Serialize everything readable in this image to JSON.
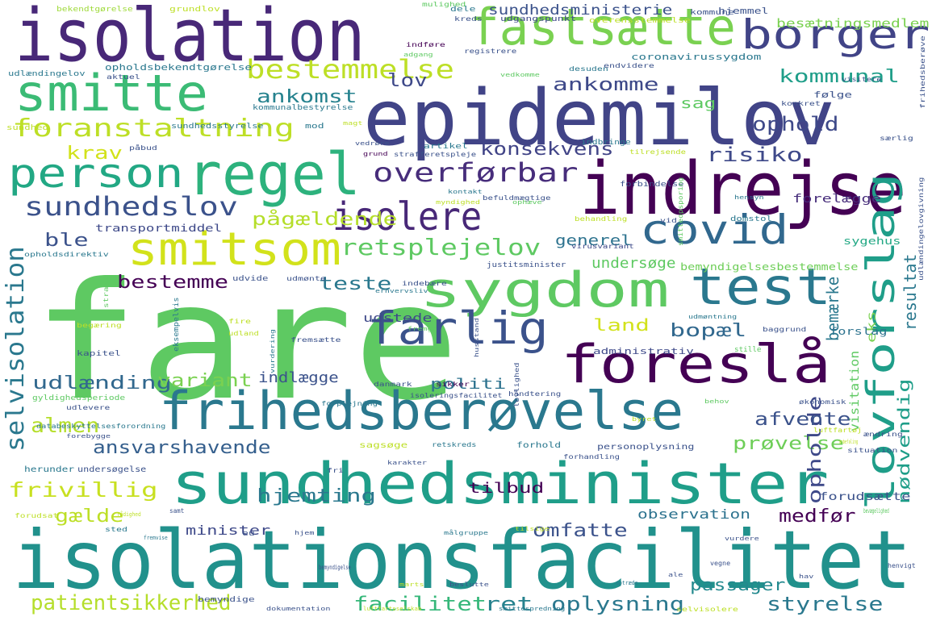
{
  "words": [
    {
      "text": "fare",
      "color": "#5ec962"
    },
    {
      "text": "isolationsfacilitet",
      "color": "#21918c"
    },
    {
      "text": "epidemilov",
      "color": "#414487"
    },
    {
      "text": "indrejse",
      "color": "#440154"
    },
    {
      "text": "isolation",
      "color": "#482878"
    },
    {
      "text": "sundhedsminister",
      "color": "#1f9e89"
    },
    {
      "text": "frihedsberøvelse",
      "color": "#2a788e"
    },
    {
      "text": "sygdom",
      "color": "#5ec962"
    },
    {
      "text": "regel",
      "color": "#2db27d"
    },
    {
      "text": "foreslå",
      "color": "#440154"
    },
    {
      "text": "smitte",
      "color": "#3bbb75"
    },
    {
      "text": "fastsætte",
      "color": "#7ad151"
    },
    {
      "text": "borger",
      "color": "#414487"
    },
    {
      "text": "test",
      "color": "#2a788e"
    },
    {
      "text": "covid",
      "color": "#31688e"
    },
    {
      "text": "lovforslag",
      "color": "#1f9e89"
    },
    {
      "text": "smitsom",
      "color": "#d2e21b"
    },
    {
      "text": "farlig",
      "color": "#3b528b"
    },
    {
      "text": "isolere",
      "color": "#482878"
    },
    {
      "text": "person",
      "color": "#22a884"
    },
    {
      "text": "bestemmelse",
      "color": "#bddf26"
    },
    {
      "text": "foranstaltning",
      "color": "#bddf26"
    },
    {
      "text": "sundhedslov",
      "color": "#3b528b"
    },
    {
      "text": "overførbar",
      "color": "#472d7b"
    },
    {
      "text": "retsplejelov",
      "color": "#5ec962"
    },
    {
      "text": "selvisolation",
      "color": "#2a788e"
    },
    {
      "text": "patientsikkerhed",
      "color": "#b5de2b"
    },
    {
      "text": "oplysning",
      "color": "#2a788e"
    },
    {
      "text": "facilitet",
      "color": "#35b779"
    },
    {
      "text": "ret",
      "color": "#26828e"
    },
    {
      "text": "styrelse",
      "color": "#2a788e"
    },
    {
      "text": "passager",
      "color": "#23898e"
    },
    {
      "text": "frivillig",
      "color": "#c8e020"
    },
    {
      "text": "almen",
      "color": "#b5de2b"
    },
    {
      "text": "udlænding",
      "color": "#31688e"
    },
    {
      "text": "variant",
      "color": "#7ad151"
    },
    {
      "text": "ansvarshavende",
      "color": "#355f8d"
    },
    {
      "text": "prøvelse",
      "color": "#6ece58"
    },
    {
      "text": "hjemting",
      "color": "#2a788e"
    },
    {
      "text": "omfatte",
      "color": "#3b528b"
    },
    {
      "text": "gælde",
      "color": "#bddf26"
    },
    {
      "text": "medfør",
      "color": "#440154"
    },
    {
      "text": "opholde",
      "color": "#3e4989"
    },
    {
      "text": "ophold",
      "color": "#3e4989"
    },
    {
      "text": "risiko",
      "color": "#3e4989"
    },
    {
      "text": "konsekvens",
      "color": "#414487"
    },
    {
      "text": "krav",
      "color": "#d2e21b"
    },
    {
      "text": "ankomst",
      "color": "#26828e"
    },
    {
      "text": "ankomme",
      "color": "#3e4989"
    },
    {
      "text": "kommunal",
      "color": "#1f9e89"
    },
    {
      "text": "lov",
      "color": "#3e4989"
    },
    {
      "text": "sag",
      "color": "#5ec962"
    },
    {
      "text": "ble",
      "color": "#3b528b"
    },
    {
      "text": "pågældende",
      "color": "#b5de2b"
    },
    {
      "text": "bestemme",
      "color": "#440154"
    },
    {
      "text": "teste",
      "color": "#2a788e"
    },
    {
      "text": "bopæl",
      "color": "#31688e"
    },
    {
      "text": "land",
      "color": "#d2e21b"
    },
    {
      "text": "bemærke",
      "color": "#2a788e"
    },
    {
      "text": "resultat",
      "color": "#2a788e"
    },
    {
      "text": "nødvendig",
      "color": "#1f9e89"
    },
    {
      "text": "afvente",
      "color": "#3b528b"
    },
    {
      "text": "indlægge",
      "color": "#3b528b"
    },
    {
      "text": "politi",
      "color": "#2c728e"
    },
    {
      "text": "generel",
      "color": "#2c728e"
    },
    {
      "text": "undersøge",
      "color": "#5ec962"
    },
    {
      "text": "tilbud",
      "color": "#440154"
    },
    {
      "text": "minister",
      "color": "#3e4989"
    },
    {
      "text": "observation",
      "color": "#2c728e"
    },
    {
      "text": "sundhedsministerie",
      "color": "#3b528b"
    },
    {
      "text": "besætningsmedlem",
      "color": "#7ad151"
    },
    {
      "text": "visitation",
      "color": "#5ec962"
    },
    {
      "text": "eks",
      "color": "#7ad151"
    },
    {
      "text": "forudsætte",
      "color": "#3b528b"
    },
    {
      "text": "udstede",
      "color": "#3e4989"
    },
    {
      "text": "transportmiddel",
      "color": "#3e4989"
    },
    {
      "text": "bemyndigelsesbestemmelse",
      "color": "#6ece58"
    },
    {
      "text": "sygehus",
      "color": "#22a884"
    },
    {
      "text": "forslag",
      "color": "#2c728e"
    },
    {
      "text": "stille",
      "color": "#5ec962"
    },
    {
      "text": "administrativ",
      "color": "#3e4989"
    },
    {
      "text": "forelægge",
      "color": "#472d7b"
    },
    {
      "text": "bekendtgørelse",
      "color": "#9fda3a"
    },
    {
      "text": "grundlov",
      "color": "#bddf26"
    },
    {
      "text": "dele",
      "color": "#2a788e"
    },
    {
      "text": "hjemmel",
      "color": "#3b528b"
    },
    {
      "text": "mulighed",
      "color": "#5ec962"
    },
    {
      "text": "kreds",
      "color": "#3b528b"
    },
    {
      "text": "udgangspunkt",
      "color": "#3e4989"
    },
    {
      "text": "overensstemmelse",
      "color": "#bddf26"
    },
    {
      "text": "kommune",
      "color": "#3b528b"
    },
    {
      "text": "opholdsbekendtgørelse",
      "color": "#2a788e"
    },
    {
      "text": "udlændingelov",
      "color": "#2a788e"
    },
    {
      "text": "aktuel",
      "color": "#3b528b"
    },
    {
      "text": "indføre",
      "color": "#440154"
    },
    {
      "text": "adgang",
      "color": "#5ec962"
    },
    {
      "text": "registrere",
      "color": "#3b528b"
    },
    {
      "text": "desuden",
      "color": "#2a788e"
    },
    {
      "text": "endvidere",
      "color": "#3b528b"
    },
    {
      "text": "visitere",
      "color": "#3b528b"
    },
    {
      "text": "coronavirussygdom",
      "color": "#2a788e"
    },
    {
      "text": "frihedsberøve",
      "color": "#3b528b"
    },
    {
      "text": "kommunalbestyrelse",
      "color": "#2a788e"
    },
    {
      "text": "vedkomme",
      "color": "#5ec962"
    },
    {
      "text": "konkret",
      "color": "#3b528b"
    },
    {
      "text": "følge",
      "color": "#3b528b"
    },
    {
      "text": "mod",
      "color": "#2a788e"
    },
    {
      "text": "magt",
      "color": "#bddf26"
    },
    {
      "text": "sundhed",
      "color": "#bddf26"
    },
    {
      "text": "påbud",
      "color": "#3b528b"
    },
    {
      "text": "sundhedsstyrelse",
      "color": "#2a788e"
    },
    {
      "text": "vedrøre",
      "color": "#3b528b"
    },
    {
      "text": "grund",
      "color": "#440154"
    },
    {
      "text": "strafferetspleje",
      "color": "#3b528b"
    },
    {
      "text": "indbringe",
      "color": "#2a788e"
    },
    {
      "text": "tilrejsende",
      "color": "#bddf26"
    },
    {
      "text": "særlig",
      "color": "#3b528b"
    },
    {
      "text": "artikel",
      "color": "#2a788e"
    },
    {
      "text": "kontakt",
      "color": "#2a788e"
    },
    {
      "text": "befuldmægtige",
      "color": "#3b528b"
    },
    {
      "text": "forbindelse",
      "color": "#3b528b"
    },
    {
      "text": "smitteopsporing",
      "color": "#5ec962"
    },
    {
      "text": "udlændingelovgivning",
      "color": "#3b528b"
    },
    {
      "text": "myndighed",
      "color": "#bddf26"
    },
    {
      "text": "ophæve",
      "color": "#5ec962"
    },
    {
      "text": "hensyn",
      "color": "#2a788e"
    },
    {
      "text": "behandling",
      "color": "#bddf26"
    },
    {
      "text": "vid",
      "color": "#3b528b"
    },
    {
      "text": "domstol",
      "color": "#2a788e"
    },
    {
      "text": "opholdsdirektiv",
      "color": "#2a788e"
    },
    {
      "text": "justitsminister",
      "color": "#3b528b"
    },
    {
      "text": "virusvariant",
      "color": "#3e4989"
    },
    {
      "text": "udvide",
      "color": "#3b528b"
    },
    {
      "text": "udmønte",
      "color": "#3b528b"
    },
    {
      "text": "indebære",
      "color": "#3b528b"
    },
    {
      "text": "erhvervsliv",
      "color": "#2a788e"
    },
    {
      "text": "straks",
      "color": "#5ec962"
    },
    {
      "text": "eksempelvis",
      "color": "#2a788e"
    },
    {
      "text": "begæring",
      "color": "#bddf26"
    },
    {
      "text": "kapitel",
      "color": "#3b528b"
    },
    {
      "text": "fire",
      "color": "#bddf26"
    },
    {
      "text": "udland",
      "color": "#bddf26"
    },
    {
      "text": "vurdering",
      "color": "#2a788e"
    },
    {
      "text": "fremsætte",
      "color": "#3b528b"
    },
    {
      "text": "fremgå",
      "color": "#5ec962"
    },
    {
      "text": "husstand",
      "color": "#3b528b"
    },
    {
      "text": "udmøntning",
      "color": "#2a788e"
    },
    {
      "text": "baggrund",
      "color": "#3b528b"
    },
    {
      "text": "lovlighed",
      "color": "#3b528b"
    },
    {
      "text": "danmark",
      "color": "#3b528b"
    },
    {
      "text": "sikker",
      "color": "#440154"
    },
    {
      "text": "håndtering",
      "color": "#3b528b"
    },
    {
      "text": "økonomisk",
      "color": "#3b528b"
    },
    {
      "text": "behov",
      "color": "#5ec962"
    },
    {
      "text": "gyldighedsperiode",
      "color": "#5ec962"
    },
    {
      "text": "udlevere",
      "color": "#3b528b"
    },
    {
      "text": "forplejning",
      "color": "#2a788e"
    },
    {
      "text": "isoleringsfacilitet",
      "color": "#3b528b"
    },
    {
      "text": "byret",
      "color": "#bddf26"
    },
    {
      "text": "databeskyttelsesforordning",
      "color": "#2a788e"
    },
    {
      "text": "forebygge",
      "color": "#3b528b"
    },
    {
      "text": "herunder",
      "color": "#2a788e"
    },
    {
      "text": "undersøgelse",
      "color": "#3b528b"
    },
    {
      "text": "sagsøge",
      "color": "#bddf26"
    },
    {
      "text": "retskreds",
      "color": "#2a788e"
    },
    {
      "text": "forhold",
      "color": "#2a788e"
    },
    {
      "text": "forhandling",
      "color": "#3b528b"
    },
    {
      "text": "personoplysning",
      "color": "#3b528b"
    },
    {
      "text": "luftfartøj",
      "color": "#bddf26"
    },
    {
      "text": "ændring",
      "color": "#3b528b"
    },
    {
      "text": "situation",
      "color": "#3b528b"
    },
    {
      "text": "anbefaling",
      "color": "#bddf26"
    },
    {
      "text": "fri",
      "color": "#3b528b"
    },
    {
      "text": "karakter",
      "color": "#3b528b"
    },
    {
      "text": "forudsat",
      "color": "#bddf26"
    },
    {
      "text": "rådighed",
      "color": "#bddf26"
    },
    {
      "text": "samt",
      "color": "#3b528b"
    },
    {
      "text": "eu",
      "color": "#3b528b"
    },
    {
      "text": "målgruppe",
      "color": "#2a788e"
    },
    {
      "text": "bevægelighed",
      "color": "#5ec962"
    },
    {
      "text": "sted",
      "color": "#2a788e"
    },
    {
      "text": "fremvise",
      "color": "#2a788e"
    },
    {
      "text": "hjem",
      "color": "#3b528b"
    },
    {
      "text": "tilsige",
      "color": "#bddf26"
    },
    {
      "text": "vurdere",
      "color": "#3b528b"
    },
    {
      "text": "bemyndigelse",
      "color": "#3b528b"
    },
    {
      "text": "vegne",
      "color": "#3b528b"
    },
    {
      "text": "ale",
      "color": "#3b528b"
    },
    {
      "text": "optræde",
      "color": "#2a788e"
    },
    {
      "text": "hav",
      "color": "#3b528b"
    },
    {
      "text": "henvigt",
      "color": "#3b528b"
    },
    {
      "text": "marts",
      "color": "#bddf26"
    },
    {
      "text": "beslutte",
      "color": "#3b528b"
    },
    {
      "text": "bemyndige",
      "color": "#3b528b"
    },
    {
      "text": "smittespredning",
      "color": "#2a788e"
    },
    {
      "text": "dokumentation",
      "color": "#3b528b"
    },
    {
      "text": "luftfartsselskab",
      "color": "#bddf26"
    },
    {
      "text": "selvisolere",
      "color": "#bddf26"
    },
    {
      "text": "indkvarteringsfacilitet",
      "color": "#3b528b"
    }
  ]
}
